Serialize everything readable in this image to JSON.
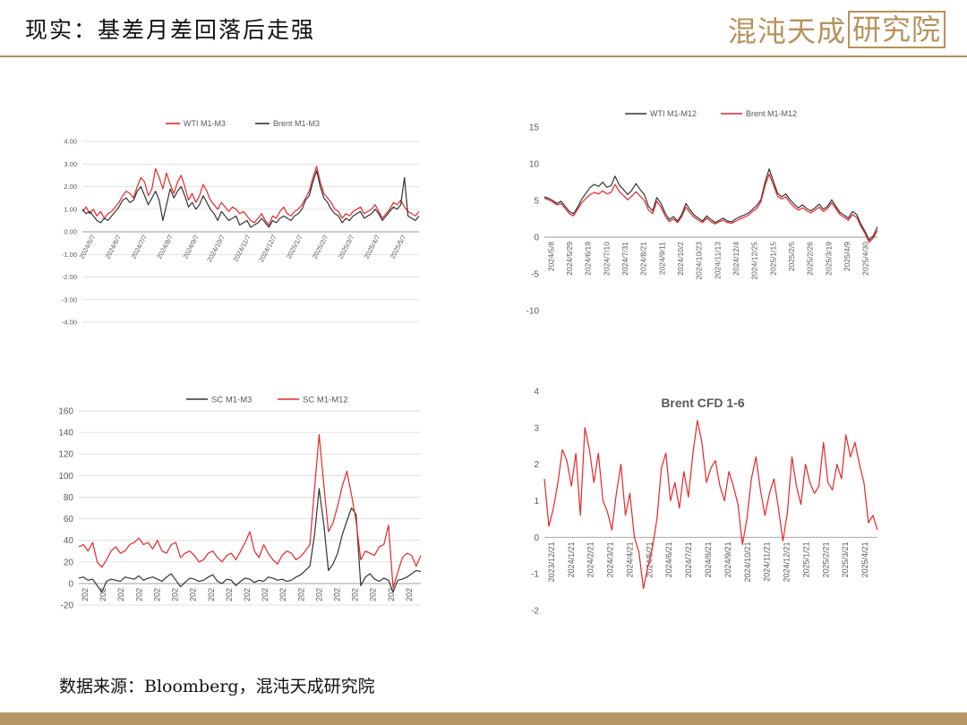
{
  "header": {
    "title": "现实：基差月差回落后走强",
    "logo_text": "混沌天成",
    "logo_box_text": "研究院"
  },
  "footer": {
    "source": "数据来源：Bloomberg，混沌天成研究院"
  },
  "chart_data": [
    {
      "id": "c1",
      "type": "line",
      "title": "",
      "xlabel": "",
      "ylabel": "",
      "legend_position": "top",
      "ylim": [
        -4,
        4
      ],
      "yticks": [
        4,
        3,
        2,
        1,
        0,
        -1,
        -2,
        -3,
        -4
      ],
      "ytick_labels": [
        "4.00",
        "3.00",
        "2.00",
        "1.00",
        "0.00",
        "-1.00",
        "-2.00",
        "-3.00",
        "-4.00"
      ],
      "xtick_labels": [
        "2024/5/7",
        "2024/6/7",
        "2024/7/7",
        "2024/8/7",
        "2024/9/7",
        "2024/10/7",
        "2024/11/7",
        "2024/12/7",
        "2025/1/7",
        "2025/2/7",
        "2025/3/7",
        "2025/4/7",
        "2025/5/7"
      ],
      "series": [
        {
          "name": "WTI M1-M3",
          "color": "#e8262a",
          "values": [
            0.9,
            1.1,
            0.8,
            1.0,
            0.7,
            0.9,
            0.6,
            0.8,
            0.9,
            1.1,
            1.3,
            1.6,
            1.8,
            1.7,
            1.5,
            2.0,
            2.4,
            2.2,
            1.6,
            1.9,
            2.8,
            2.4,
            1.9,
            2.6,
            2.1,
            1.7,
            2.2,
            2.5,
            2.0,
            1.4,
            1.7,
            1.3,
            1.6,
            2.1,
            1.8,
            1.4,
            1.2,
            1.0,
            1.3,
            1.1,
            0.9,
            1.1,
            1.0,
            0.8,
            0.9,
            0.7,
            0.5,
            0.4,
            0.6,
            0.8,
            0.5,
            0.3,
            0.7,
            0.6,
            0.9,
            1.1,
            0.8,
            0.7,
            0.9,
            1.0,
            1.2,
            1.5,
            1.8,
            2.4,
            2.9,
            2.2,
            1.7,
            1.5,
            1.3,
            1.0,
            0.9,
            0.6,
            0.8,
            0.7,
            0.9,
            1.0,
            1.1,
            0.8,
            0.9,
            1.0,
            1.2,
            0.9,
            0.6,
            0.8,
            1.0,
            1.3,
            1.2,
            1.4,
            1.1,
            0.9,
            0.8,
            0.7,
            0.9
          ]
        },
        {
          "name": "Brent M1-M3",
          "color": "#333333",
          "values": [
            1.0,
            0.8,
            0.9,
            0.7,
            0.5,
            0.4,
            0.6,
            0.5,
            0.7,
            0.9,
            1.1,
            1.4,
            1.5,
            1.3,
            1.4,
            1.8,
            2.0,
            1.6,
            1.2,
            1.5,
            1.8,
            1.4,
            0.5,
            1.2,
            1.9,
            1.5,
            1.8,
            2.0,
            1.6,
            1.1,
            1.3,
            1.0,
            1.2,
            1.6,
            1.3,
            1.0,
            0.8,
            0.5,
            0.9,
            0.7,
            0.5,
            0.6,
            0.7,
            0.3,
            0.4,
            0.5,
            0.2,
            0.3,
            0.4,
            0.6,
            0.4,
            0.2,
            0.5,
            0.4,
            0.6,
            0.7,
            0.6,
            0.5,
            0.7,
            0.8,
            1.0,
            1.4,
            1.6,
            2.2,
            2.7,
            2.0,
            1.5,
            1.3,
            1.0,
            0.8,
            0.7,
            0.4,
            0.6,
            0.5,
            0.7,
            0.8,
            0.9,
            0.6,
            0.7,
            0.8,
            1.0,
            0.8,
            0.5,
            0.7,
            0.9,
            1.1,
            1.0,
            1.2,
            2.4,
            0.7,
            0.6,
            0.5,
            0.7
          ]
        }
      ]
    },
    {
      "id": "c2",
      "type": "line",
      "title": "",
      "xlabel": "",
      "ylabel": "",
      "legend_position": "top",
      "ylim": [
        -10,
        15
      ],
      "yticks": [
        15,
        10,
        5,
        0,
        -5,
        -10
      ],
      "ytick_labels": [
        "15",
        "10",
        "5",
        "0",
        "-5",
        "-10"
      ],
      "xtick_labels": [
        "2024/5/8",
        "2024/5/29",
        "2024/6/19",
        "2024/7/10",
        "2024/7/31",
        "2024/8/21",
        "2024/9/11",
        "2024/10/2",
        "2024/10/23",
        "2024/11/13",
        "2024/12/4",
        "2024/12/25",
        "2025/1/15",
        "2025/2/5",
        "2025/2/26",
        "2025/3/19",
        "2025/4/9",
        "2025/4/30"
      ],
      "series": [
        {
          "name": "WTI M1-M12",
          "color": "#333333",
          "values": [
            5.5,
            5.3,
            5.0,
            4.6,
            4.9,
            4.2,
            3.5,
            3.2,
            4.1,
            5.2,
            6.0,
            6.8,
            7.2,
            6.9,
            7.5,
            6.8,
            7.0,
            8.3,
            7.1,
            6.5,
            5.8,
            6.4,
            7.3,
            6.5,
            5.8,
            4.2,
            3.6,
            5.4,
            4.6,
            3.3,
            2.4,
            2.8,
            2.2,
            3.1,
            4.6,
            3.7,
            3.0,
            2.6,
            2.2,
            2.9,
            2.4,
            2.0,
            2.3,
            2.6,
            2.2,
            2.1,
            2.5,
            2.8,
            3.0,
            3.3,
            3.8,
            4.3,
            5.1,
            7.5,
            9.3,
            7.6,
            6.0,
            5.5,
            5.9,
            5.1,
            4.5,
            4.0,
            4.4,
            3.9,
            3.6,
            4.0,
            4.5,
            3.8,
            4.2,
            5.1,
            4.2,
            3.4,
            3.0,
            2.6,
            3.5,
            3.1,
            1.8,
            0.8,
            -0.4,
            0.2,
            1.4
          ]
        },
        {
          "name": "Brent M1-M12",
          "color": "#e8262a",
          "values": [
            5.3,
            5.1,
            4.8,
            4.4,
            4.6,
            3.9,
            3.2,
            2.9,
            3.8,
            4.7,
            5.3,
            5.8,
            6.1,
            5.9,
            6.3,
            5.9,
            6.1,
            7.2,
            6.2,
            5.7,
            5.1,
            5.6,
            6.2,
            5.6,
            5.0,
            3.7,
            3.2,
            4.9,
            4.1,
            2.9,
            2.1,
            2.5,
            2.0,
            2.8,
            4.1,
            3.3,
            2.7,
            2.3,
            2.0,
            2.6,
            2.1,
            1.8,
            2.1,
            2.3,
            2.0,
            1.9,
            2.2,
            2.5,
            2.7,
            3.0,
            3.5,
            3.9,
            4.8,
            7.0,
            8.6,
            7.1,
            5.6,
            5.2,
            5.5,
            4.7,
            4.1,
            3.7,
            4.0,
            3.6,
            3.3,
            3.7,
            4.1,
            3.5,
            3.9,
            4.7,
            3.9,
            3.1,
            2.7,
            2.3,
            3.1,
            2.7,
            1.5,
            0.5,
            -0.7,
            -0.1,
            0.9
          ]
        }
      ]
    },
    {
      "id": "c3",
      "type": "line",
      "title": "",
      "xlabel": "",
      "ylabel": "",
      "legend_position": "top",
      "ylim": [
        -20,
        160
      ],
      "yticks": [
        160,
        140,
        120,
        100,
        80,
        60,
        40,
        20,
        0,
        -20
      ],
      "ytick_labels": [
        "160",
        "140",
        "120",
        "100",
        "80",
        "60",
        "40",
        "20",
        "0",
        "-20"
      ],
      "xtick_labels": [
        "202",
        "202",
        "202",
        "202",
        "202",
        "202",
        "202",
        "202",
        "202",
        "202",
        "202",
        "202",
        "202",
        "202",
        "202",
        "202",
        "202",
        "202",
        "202"
      ],
      "series": [
        {
          "name": "SC M1-M3",
          "color": "#333333",
          "values": [
            5,
            6,
            3,
            4,
            -2,
            -8,
            2,
            4,
            3,
            2,
            6,
            5,
            4,
            7,
            3,
            5,
            6,
            4,
            2,
            6,
            9,
            3,
            -3,
            1,
            5,
            4,
            2,
            3,
            6,
            8,
            2,
            0,
            4,
            3,
            -2,
            2,
            5,
            4,
            1,
            3,
            2,
            6,
            5,
            3,
            4,
            2,
            3,
            6,
            8,
            12,
            16,
            45,
            88,
            55,
            12,
            18,
            28,
            45,
            58,
            70,
            64,
            -2,
            6,
            9,
            4,
            2,
            5,
            3,
            -8,
            3,
            4,
            6,
            9,
            12,
            11
          ]
        },
        {
          "name": "SC M1-M12",
          "color": "#e8262a",
          "values": [
            34,
            36,
            30,
            38,
            20,
            15,
            22,
            30,
            34,
            28,
            30,
            36,
            38,
            42,
            36,
            38,
            32,
            40,
            30,
            28,
            36,
            38,
            24,
            28,
            30,
            26,
            20,
            22,
            28,
            30,
            24,
            20,
            26,
            28,
            22,
            30,
            38,
            48,
            30,
            24,
            36,
            28,
            22,
            18,
            26,
            30,
            28,
            22,
            25,
            30,
            36,
            88,
            138,
            92,
            48,
            56,
            72,
            90,
            104,
            82,
            58,
            22,
            30,
            28,
            26,
            34,
            36,
            54,
            -4,
            10,
            24,
            28,
            26,
            16,
            26
          ]
        }
      ]
    },
    {
      "id": "c4",
      "type": "line",
      "title": "Brent CFD 1-6",
      "xlabel": "",
      "ylabel": "",
      "legend_position": "none",
      "ylim": [
        -2,
        4
      ],
      "yticks": [
        4,
        3,
        2,
        1,
        0,
        -1,
        -2
      ],
      "ytick_labels": [
        "4",
        "3",
        "2",
        "1",
        "0",
        "-1",
        "-2"
      ],
      "xtick_labels": [
        "2023/12/21",
        "2024/1/21",
        "2024/2/21",
        "2024/3/21",
        "2024/4/21",
        "2024/5/21",
        "2024/6/21",
        "2024/7/21",
        "2024/8/21",
        "2024/9/21",
        "2024/10/21",
        "2024/11/21",
        "2024/12/21",
        "2025/1/21",
        "2025/2/21",
        "2025/3/21",
        "2025/4/21"
      ],
      "series": [
        {
          "name": "",
          "color": "#e8262a",
          "values": [
            1.6,
            0.3,
            0.8,
            1.5,
            2.4,
            2.1,
            1.4,
            2.3,
            0.6,
            3.0,
            2.4,
            1.5,
            2.3,
            1.0,
            0.7,
            0.2,
            1.2,
            2.0,
            0.6,
            1.2,
            0.0,
            -0.4,
            -1.4,
            -0.8,
            -0.3,
            0.5,
            1.9,
            2.3,
            1.0,
            1.5,
            0.8,
            1.8,
            1.1,
            2.3,
            3.2,
            2.6,
            1.5,
            1.9,
            2.1,
            1.4,
            1.0,
            1.8,
            1.4,
            0.9,
            -0.2,
            0.5,
            1.6,
            2.2,
            1.3,
            0.6,
            1.2,
            1.6,
            0.8,
            -0.1,
            0.7,
            2.2,
            1.4,
            0.9,
            2.0,
            1.5,
            1.2,
            1.4,
            2.6,
            1.5,
            1.3,
            2.0,
            1.6,
            2.8,
            2.2,
            2.6,
            2.0,
            1.5,
            0.4,
            0.6,
            0.2
          ]
        }
      ]
    }
  ]
}
